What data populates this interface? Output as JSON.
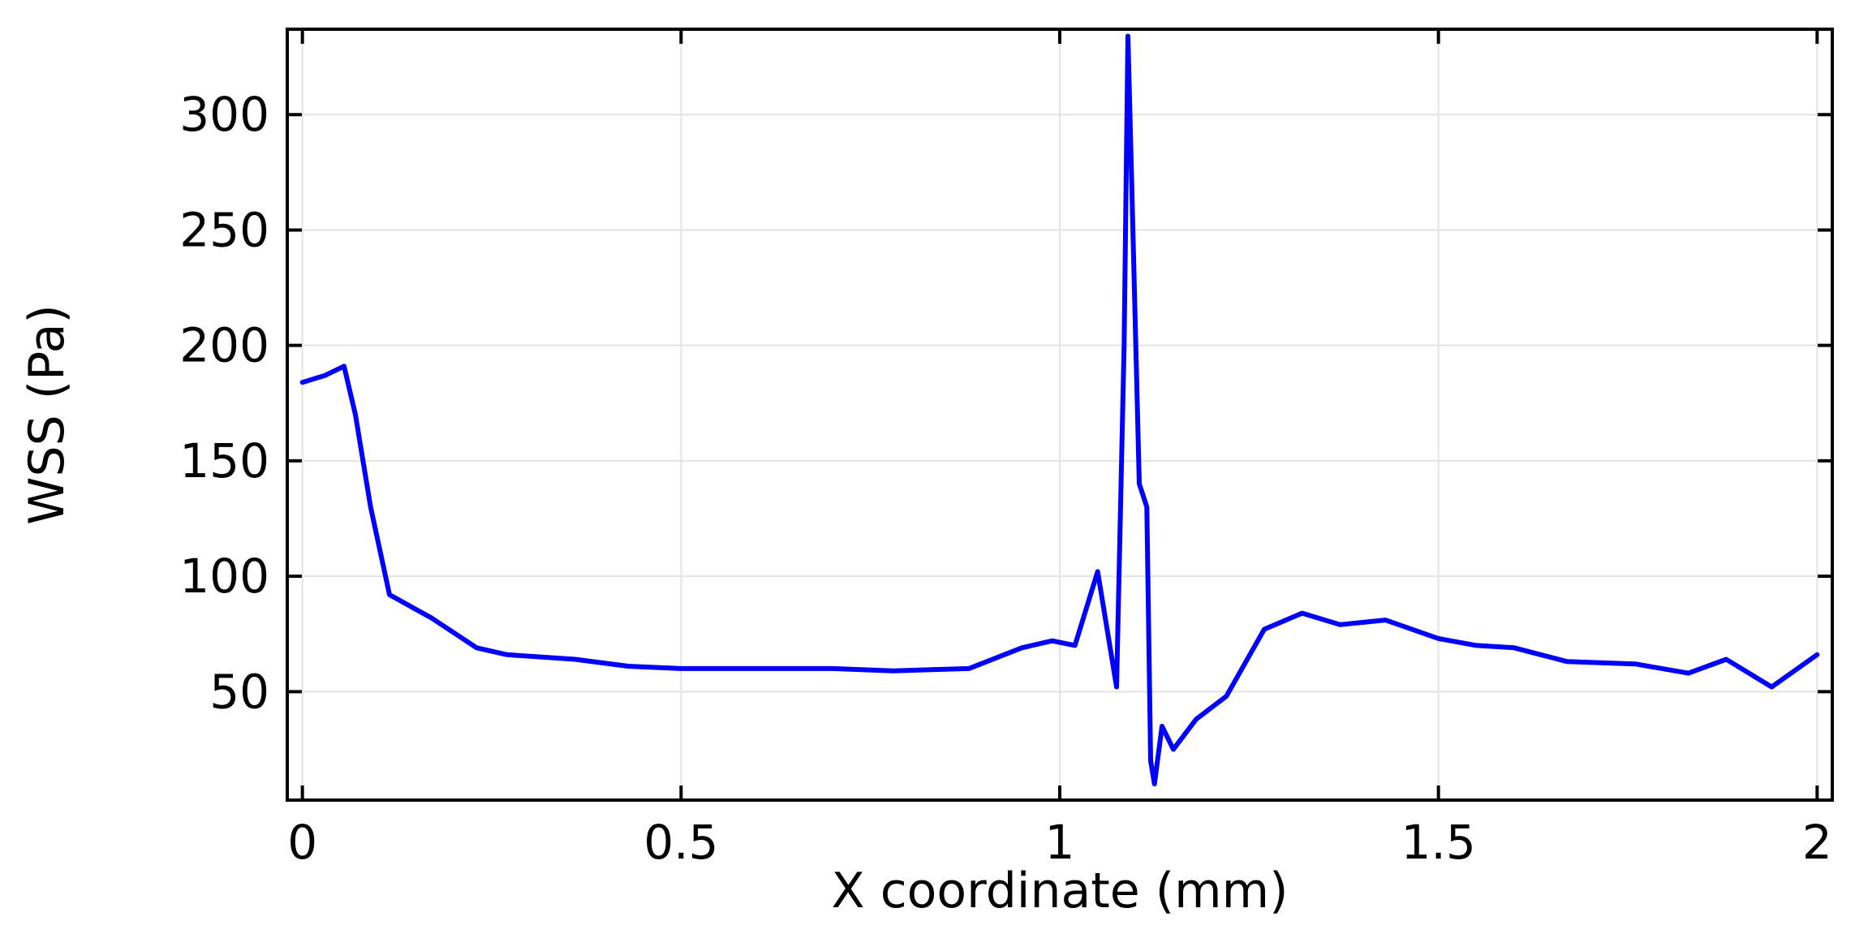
{
  "chart_data": {
    "type": "line",
    "title": "",
    "xlabel": "X coordinate (mm)",
    "ylabel": "WSS (Pa)",
    "xlim": [
      -0.02,
      2.02
    ],
    "ylim": [
      3,
      337
    ],
    "xticks": [
      0,
      0.5,
      1,
      1.5,
      2
    ],
    "xtick_labels": [
      "0",
      "0.5",
      "1",
      "1.5",
      "2"
    ],
    "yticks": [
      50,
      100,
      150,
      200,
      250,
      300
    ],
    "ytick_labels": [
      "50",
      "100",
      "150",
      "200",
      "250",
      "300"
    ],
    "grid": true,
    "legend": "none",
    "series": [
      {
        "color": "#0000ff",
        "x": [
          0.0,
          0.03,
          0.055,
          0.07,
          0.09,
          0.115,
          0.17,
          0.23,
          0.27,
          0.36,
          0.43,
          0.5,
          0.7,
          0.78,
          0.88,
          0.95,
          0.99,
          1.02,
          1.05,
          1.075,
          1.085,
          1.09,
          1.095,
          1.105,
          1.115,
          1.12,
          1.125,
          1.135,
          1.15,
          1.18,
          1.22,
          1.27,
          1.32,
          1.37,
          1.43,
          1.5,
          1.55,
          1.6,
          1.67,
          1.76,
          1.83,
          1.88,
          1.94,
          2.0
        ],
        "y": [
          184,
          187,
          191,
          170,
          130,
          92,
          82,
          69,
          66,
          64,
          61,
          60,
          60,
          59,
          60,
          69,
          72,
          70,
          102,
          52,
          200,
          334,
          270,
          140,
          130,
          20,
          10,
          35,
          25,
          38,
          48,
          77,
          84,
          79,
          81,
          73,
          70,
          69,
          63,
          62,
          58,
          64,
          52,
          66
        ]
      }
    ]
  },
  "colors": {
    "series": "#0000ff",
    "grid": "#e3e3e3",
    "axes": "#000000"
  }
}
